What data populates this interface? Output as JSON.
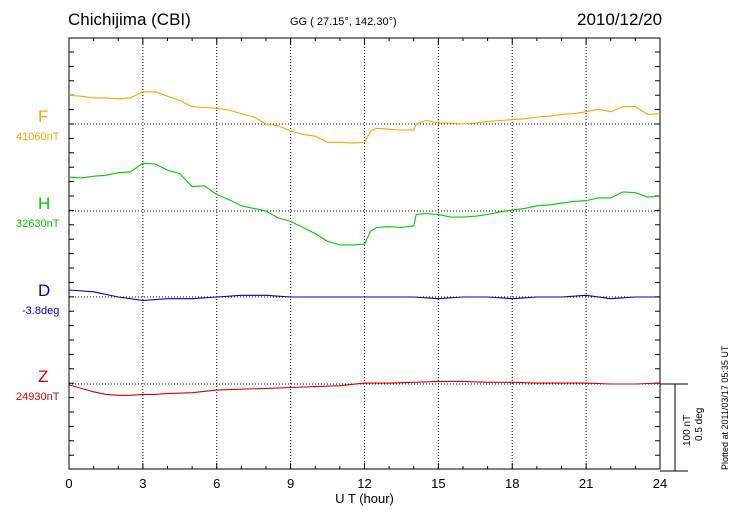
{
  "header": {
    "station": "Chichijima (CBI)",
    "coords": "GG ( 27.15°, 142.30°)",
    "date": "2010/12/20"
  },
  "plotted_note": "Plotted at 2011/03/17 05:35 UT",
  "scale": {
    "nt": "100 nT",
    "deg": "0.5 deg"
  },
  "colors": {
    "F": "#FFA500",
    "H": "#00CC00",
    "D": "#0000CC",
    "Z": "#DD0000"
  },
  "chart_data": {
    "type": "line",
    "title": "Chichijima (CBI)",
    "xlabel": "U T (hour)",
    "ylabel": "",
    "xlim": [
      0,
      24
    ],
    "xticks": [
      0,
      3,
      6,
      9,
      12,
      15,
      18,
      21,
      24
    ],
    "x_tick_labels": [
      "0",
      "3",
      "6",
      "9",
      "12",
      "15",
      "18",
      "21",
      "24"
    ],
    "grid": true,
    "scale_bar": "100 nT / 0.5 deg",
    "series": [
      {
        "name": "F",
        "base_label": "41060nT",
        "unit": "nT",
        "x": [
          0,
          0.5,
          1,
          1.5,
          2,
          2.5,
          3,
          3.5,
          4,
          4.5,
          5,
          5.5,
          6,
          6.5,
          7,
          7.5,
          8,
          8.5,
          9,
          9.5,
          10,
          10.5,
          11,
          11.5,
          12,
          12.25,
          12.5,
          13,
          13.5,
          14,
          14.1,
          14.5,
          15,
          15.5,
          16,
          16.5,
          17,
          17.5,
          18,
          18.5,
          19,
          19.5,
          20,
          20.5,
          21,
          21.5,
          22,
          22.5,
          23,
          23.5,
          24
        ],
        "values": [
          33,
          32,
          30,
          30,
          29,
          30,
          37,
          37,
          32,
          27,
          20,
          19,
          18,
          16,
          12,
          8,
          0,
          -2,
          -8,
          -12,
          -14,
          -21,
          -21,
          -22,
          -21,
          -8,
          -5,
          -6,
          -7,
          -7,
          0,
          4,
          1,
          1,
          0,
          1,
          3,
          4,
          5,
          6,
          8,
          9,
          11,
          12,
          14,
          17,
          14,
          20,
          20,
          11,
          12
        ]
      },
      {
        "name": "H",
        "base_label": "32630nT",
        "unit": "nT",
        "x": [
          0,
          0.5,
          1,
          1.5,
          2,
          2.5,
          3,
          3.5,
          4,
          4.5,
          5,
          5.5,
          6,
          6.5,
          7,
          7.5,
          8,
          8.5,
          9,
          9.5,
          10,
          10.5,
          11,
          11.5,
          12,
          12.25,
          12.5,
          13,
          13.5,
          14,
          14.1,
          14.5,
          15,
          15.5,
          16,
          16.5,
          17,
          17.5,
          18,
          18.5,
          19,
          19.5,
          20,
          20.5,
          21,
          21.5,
          22,
          22.5,
          23,
          23.5,
          24
        ],
        "values": [
          39,
          38,
          40,
          41,
          44,
          45,
          55,
          54,
          47,
          43,
          28,
          29,
          19,
          13,
          6,
          3,
          0,
          -8,
          -12,
          -19,
          -26,
          -35,
          -39,
          -39,
          -38,
          -23,
          -19,
          -18,
          -19,
          -17,
          -4,
          -3,
          -4,
          -7,
          -7,
          -6,
          -4,
          -1,
          1,
          3,
          6,
          7,
          9,
          11,
          12,
          15,
          15,
          22,
          21,
          16,
          17
        ]
      },
      {
        "name": "D",
        "base_label": "-3.8deg",
        "unit": "deg",
        "x": [
          0,
          1,
          2,
          3,
          4,
          5,
          6,
          7,
          8,
          9,
          10,
          11,
          12,
          13,
          14,
          15,
          16,
          17,
          18,
          19,
          20,
          21,
          22,
          23,
          24
        ],
        "values": [
          0.04,
          0.03,
          0.0,
          -0.02,
          -0.01,
          -0.01,
          0.0,
          0.01,
          0.01,
          0.0,
          0.0,
          0.0,
          0.0,
          0.0,
          0.0,
          -0.01,
          0.0,
          0.0,
          -0.01,
          0.0,
          0.0,
          0.01,
          -0.01,
          0.0,
          0.0
        ]
      },
      {
        "name": "Z",
        "base_label": "24930nT",
        "unit": "nT",
        "x": [
          0,
          0.5,
          1,
          1.5,
          2,
          2.5,
          3,
          3.5,
          4,
          5,
          6,
          7,
          8,
          9,
          10,
          11,
          12,
          12.5,
          13,
          14,
          15,
          16,
          17,
          18,
          19,
          20,
          21,
          22,
          23,
          24
        ],
        "values": [
          -1,
          -5,
          -9,
          -12,
          -13,
          -13,
          -12,
          -12,
          -11,
          -10,
          -7,
          -6,
          -5,
          -4,
          -3,
          -2,
          1,
          1,
          1,
          2,
          3,
          3,
          2,
          2,
          1,
          1,
          1,
          0,
          0,
          1
        ]
      }
    ]
  }
}
